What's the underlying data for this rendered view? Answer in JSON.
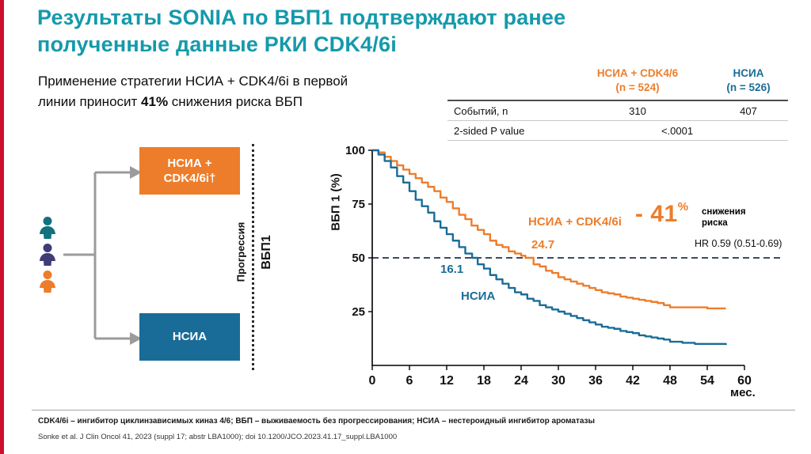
{
  "slide": {
    "accent_bar_color": "#CE0E2D",
    "title": {
      "line1": "Результаты SONIA по ВБП1 подтверждают ранее",
      "line2": "полученные данные РКИ CDK4/6i",
      "color": "#149AAB"
    },
    "subtitle": {
      "before": "Применение стратегии НСИА + CDK4/6i в первой линии приносит ",
      "highlight": "41%",
      "after": " снижения риска ВБП"
    }
  },
  "results_table": {
    "col1": {
      "name": "НСИА + CDK4/6",
      "n": "(n = 524)",
      "color": "#ED7D2B"
    },
    "col2": {
      "name": "НСИА",
      "n": "(n = 526)",
      "color": "#1A6C98"
    },
    "row1": {
      "label": "Событий, n",
      "value1": "310",
      "value2": "407"
    },
    "row2": {
      "label": "2-sided P value",
      "value": "<.0001"
    }
  },
  "diagram": {
    "arm_top": {
      "line1": "НСИА +",
      "line2": "CDK4/6i†",
      "color": "#ED7D2B"
    },
    "arm_bottom": {
      "label": "НСИА",
      "color": "#1A6C98"
    },
    "progression_label": "Прогрессия",
    "endpoint_label": "ВБП1",
    "patient_colors": [
      "#12717F",
      "#3F3C77",
      "#ED7D2B"
    ]
  },
  "chart_data": {
    "type": "line",
    "subtype": "kaplan-meier-step",
    "title": "",
    "ylabel": "ВБП 1 (%)",
    "xlabel": "мес.",
    "xlim": [
      0,
      60
    ],
    "ylim": [
      0,
      100
    ],
    "xticks": [
      0,
      6,
      12,
      18,
      24,
      30,
      36,
      42,
      48,
      54,
      60
    ],
    "yticks": [
      25,
      50,
      75,
      100
    ],
    "grid": false,
    "reference_line": {
      "y": 50,
      "style": "dashed",
      "color": "#3C4B66"
    },
    "series": [
      {
        "name": "НСИА + CDK4/6i",
        "color": "#ED7D2B",
        "median_months": 24.7,
        "x": [
          0,
          1,
          2,
          3,
          4,
          5,
          6,
          7,
          8,
          9,
          10,
          11,
          12,
          13,
          14,
          15,
          16,
          17,
          18,
          19,
          20,
          21,
          22,
          23,
          24,
          24.7,
          26,
          27,
          28,
          29,
          30,
          31,
          32,
          33,
          34,
          35,
          36,
          37,
          38,
          39,
          40,
          41,
          42,
          43,
          44,
          45,
          46,
          47,
          48,
          50,
          52,
          54,
          57
        ],
        "y": [
          100,
          99,
          97,
          95,
          93,
          91,
          89,
          87,
          85,
          83,
          81,
          78,
          76,
          73,
          70,
          68,
          65,
          63,
          61,
          58,
          56,
          55,
          53,
          52,
          51,
          50,
          47,
          46,
          44,
          43,
          41,
          40,
          39,
          38,
          37,
          36,
          35,
          34,
          33.5,
          33,
          32,
          31.5,
          31,
          30.5,
          30,
          29.5,
          29,
          28,
          27,
          27,
          27,
          26.5,
          26.5
        ]
      },
      {
        "name": "НСИА",
        "color": "#1A6C98",
        "median_months": 16.1,
        "x": [
          0,
          1,
          2,
          3,
          4,
          5,
          6,
          7,
          8,
          9,
          10,
          11,
          12,
          13,
          14,
          15,
          16.1,
          17,
          18,
          19,
          20,
          21,
          22,
          23,
          24,
          25,
          26,
          27,
          28,
          29,
          30,
          31,
          32,
          33,
          34,
          35,
          36,
          37,
          38,
          39,
          40,
          41,
          42,
          43,
          44,
          45,
          46,
          47,
          48,
          50,
          52,
          54,
          57
        ],
        "y": [
          100,
          98,
          95,
          92,
          88,
          85,
          81,
          77,
          74,
          71,
          67,
          64,
          61,
          58,
          55,
          52,
          50,
          47,
          45,
          42,
          40,
          38,
          36,
          34,
          33,
          31,
          30,
          28,
          27,
          26,
          25,
          24,
          23,
          22,
          21,
          20,
          19,
          18,
          17.5,
          17,
          16,
          15.5,
          15,
          14,
          13.5,
          13,
          12.5,
          12,
          11,
          10.5,
          10,
          10,
          9.5
        ]
      }
    ]
  },
  "annotations": {
    "combo_label": "НСИА + CDK4/6i",
    "combo_median": "24.7",
    "mono_median": "16.1",
    "mono_label": "НСИА",
    "reduction_value": "- 41",
    "reduction_pct": "%",
    "reduction_caption_line1": "снижения",
    "reduction_caption_line2": "риска",
    "hr": "HR 0.59 (0.51-0.69)"
  },
  "footer": {
    "abbreviations": "CDK4/6i – ингибитор циклинзависимых киназ 4/6; ВБП – выживаемость без прогрессирования; НСИА – нестероидный ингибитор ароматазы",
    "reference": "Sonke et al. J Clin Oncol 41, 2023 (suppl 17; abstr LBA1000); doi 10.1200/JCO.2023.41.17_suppl.LBA1000"
  }
}
